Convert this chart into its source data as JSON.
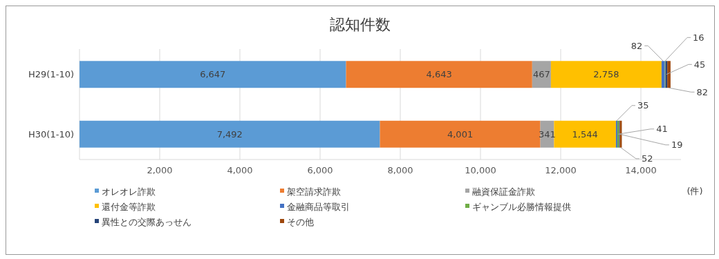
{
  "chart_data": {
    "type": "bar",
    "orientation": "horizontal",
    "stacked": true,
    "title": "認知件数",
    "xlabel": "(件)",
    "categories": [
      "H29(1-10)",
      "H30(1-10)"
    ],
    "series": [
      {
        "name": "オレオレ詐欺",
        "color": "#5b9bd5",
        "values": [
          6647,
          7492
        ],
        "value_labels": [
          "6,647",
          "7,492"
        ]
      },
      {
        "name": "架空請求詐欺",
        "color": "#ed7d31",
        "values": [
          4643,
          4001
        ],
        "value_labels": [
          "4,643",
          "4,001"
        ]
      },
      {
        "name": "融資保証金詐欺",
        "color": "#a5a5a5",
        "values": [
          467,
          341
        ],
        "value_labels": [
          "467",
          "341"
        ]
      },
      {
        "name": "還付金等詐欺",
        "color": "#ffc000",
        "values": [
          2758,
          1544
        ],
        "value_labels": [
          "2,758",
          "1,544"
        ]
      },
      {
        "name": "金融商品等取引",
        "color": "#4472c4",
        "values": [
          82,
          35
        ],
        "value_labels": [
          "82",
          "35"
        ]
      },
      {
        "name": "ギャンブル必勝情報提供",
        "color": "#70ad47",
        "values": [
          16,
          41
        ],
        "value_labels": [
          "16",
          "41"
        ]
      },
      {
        "name": "異性との交際あっせん",
        "color": "#264478",
        "values": [
          45,
          19
        ],
        "value_labels": [
          "45",
          "19"
        ]
      },
      {
        "name": "その他",
        "color": "#9e480e",
        "values": [
          82,
          52
        ],
        "value_labels": [
          "82",
          "52"
        ]
      }
    ],
    "xlim": [
      0,
      15000
    ],
    "xticks": [
      {
        "value": 2000,
        "label": "2,000"
      },
      {
        "value": 4000,
        "label": "4,000"
      },
      {
        "value": 6000,
        "label": "6,000"
      },
      {
        "value": 8000,
        "label": "8,000"
      },
      {
        "value": 10000,
        "label": "10,000"
      },
      {
        "value": 12000,
        "label": "12,000"
      },
      {
        "value": 14000,
        "label": "14,000"
      }
    ],
    "grid": "x",
    "legend": "bottom"
  }
}
